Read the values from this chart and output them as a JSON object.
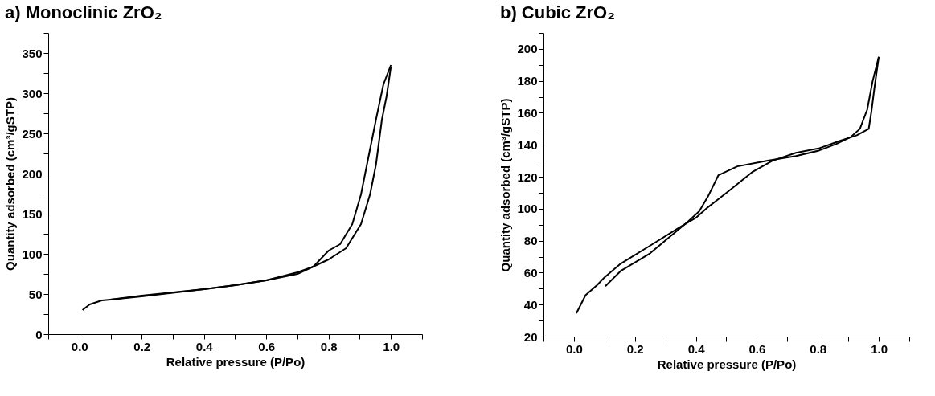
{
  "chart_data": [
    {
      "type": "line",
      "title": "a)   Monoclinic ZrO₂",
      "xlabel": "Relative pressure (P/Po)",
      "ylabel": "Quantity adsorbed (cm³/gSTP)",
      "line_style": "solid",
      "xlim": [
        -0.1,
        1.1
      ],
      "ylim": [
        0,
        375
      ],
      "xticks": [
        {
          "value": -0.1,
          "label": null
        },
        {
          "value": 0,
          "label": "0.0"
        },
        {
          "value": 0.1,
          "label": null
        },
        {
          "value": 0.2,
          "label": "0.2"
        },
        {
          "value": 0.3,
          "label": null
        },
        {
          "value": 0.4,
          "label": "0.4"
        },
        {
          "value": 0.5,
          "label": null
        },
        {
          "value": 0.6,
          "label": "0.6"
        },
        {
          "value": 0.7,
          "label": null
        },
        {
          "value": 0.8,
          "label": "0.8"
        },
        {
          "value": 0.9,
          "label": null
        },
        {
          "value": 1.0,
          "label": "1.0"
        },
        {
          "value": 1.1,
          "label": null
        }
      ],
      "yticks": [
        0,
        {
          "value": 25,
          "label": null
        },
        50,
        {
          "value": 75,
          "label": null
        },
        100,
        {
          "value": 125,
          "label": null
        },
        150,
        {
          "value": 175,
          "label": null
        },
        200,
        {
          "value": 225,
          "label": null
        },
        250,
        {
          "value": 275,
          "label": null
        },
        300,
        {
          "value": 325,
          "label": null
        },
        350,
        {
          "value": 375,
          "label": null
        }
      ],
      "series": [
        {
          "color": "#000000",
          "x": [
            0.01,
            0.033,
            0.072,
            0.1,
            0.2,
            0.4,
            0.5,
            0.6,
            0.7,
            0.8,
            0.856,
            0.904,
            0.933,
            0.952,
            0.971,
            0.986,
            1.0
          ],
          "values": [
            30,
            37,
            42,
            43,
            47,
            56,
            61,
            67,
            75,
            93,
            107,
            137,
            174,
            211,
            267,
            296,
            333
          ]
        },
        {
          "color": "#000000",
          "x": [
            1.0,
            0.976,
            0.952,
            0.923,
            0.904,
            0.876,
            0.837,
            0.8,
            0.751,
            0.7,
            0.6,
            0.5,
            0.4,
            0.2,
            0.1
          ],
          "values": [
            335,
            311,
            267,
            211,
            174,
            137,
            112,
            104,
            84,
            77,
            67,
            61,
            56,
            48,
            43
          ]
        }
      ]
    },
    {
      "type": "line",
      "title": "b)   Cubic ZrO₂",
      "xlabel": "Relative pressure (P/Po)",
      "ylabel": "Quantity adsorbed (cm³/gSTP)",
      "line_style": "solid",
      "xlim": [
        -0.1,
        1.1
      ],
      "ylim": [
        20,
        210
      ],
      "xticks": [
        {
          "value": -0.1,
          "label": null
        },
        {
          "value": 0,
          "label": "0.0"
        },
        {
          "value": 0.1,
          "label": null
        },
        {
          "value": 0.2,
          "label": "0.2"
        },
        {
          "value": 0.3,
          "label": null
        },
        {
          "value": 0.4,
          "label": "0.4"
        },
        {
          "value": 0.5,
          "label": null
        },
        {
          "value": 0.6,
          "label": "0.6"
        },
        {
          "value": 0.7,
          "label": null
        },
        {
          "value": 0.8,
          "label": "0.8"
        },
        {
          "value": 0.9,
          "label": null
        },
        {
          "value": 1.0,
          "label": "1.0"
        },
        {
          "value": 1.1,
          "label": null
        }
      ],
      "yticks": [
        20,
        {
          "value": 30,
          "label": null
        },
        40,
        {
          "value": 50,
          "label": null
        },
        60,
        {
          "value": 70,
          "label": null
        },
        80,
        {
          "value": 90,
          "label": null
        },
        100,
        {
          "value": 110,
          "label": null
        },
        120,
        {
          "value": 130,
          "label": null
        },
        140,
        {
          "value": 150,
          "label": null
        },
        160,
        {
          "value": 170,
          "label": null
        },
        180,
        {
          "value": 190,
          "label": null
        },
        200,
        {
          "value": 210,
          "label": null
        }
      ],
      "series": [
        {
          "color": "#000000",
          "x": [
            0.008,
            0.038,
            0.077,
            0.1,
            0.153,
            0.249,
            0.344,
            0.402,
            0.44,
            0.498,
            0.584,
            0.651,
            0.728,
            0.804,
            0.871,
            0.928,
            0.967,
            0.976,
            0.986,
            1.0
          ],
          "values": [
            34.6,
            45.9,
            52.4,
            57,
            65.6,
            76.8,
            88,
            94.6,
            101,
            109.6,
            122.8,
            130,
            135,
            137.8,
            142.4,
            146,
            150,
            161,
            176,
            195
          ]
        },
        {
          "color": "#000000",
          "x": [
            1.0,
            0.98,
            0.962,
            0.938,
            0.909,
            0.861,
            0.804,
            0.728,
            0.632,
            0.536,
            0.474,
            0.44,
            0.411,
            0.373,
            0.249,
            0.153,
            0.103
          ],
          "values": [
            195,
            180,
            162,
            150,
            145,
            140.6,
            136.4,
            133,
            130,
            126.5,
            121,
            107.8,
            98.4,
            91.8,
            72,
            61,
            51.5
          ]
        }
      ]
    }
  ]
}
